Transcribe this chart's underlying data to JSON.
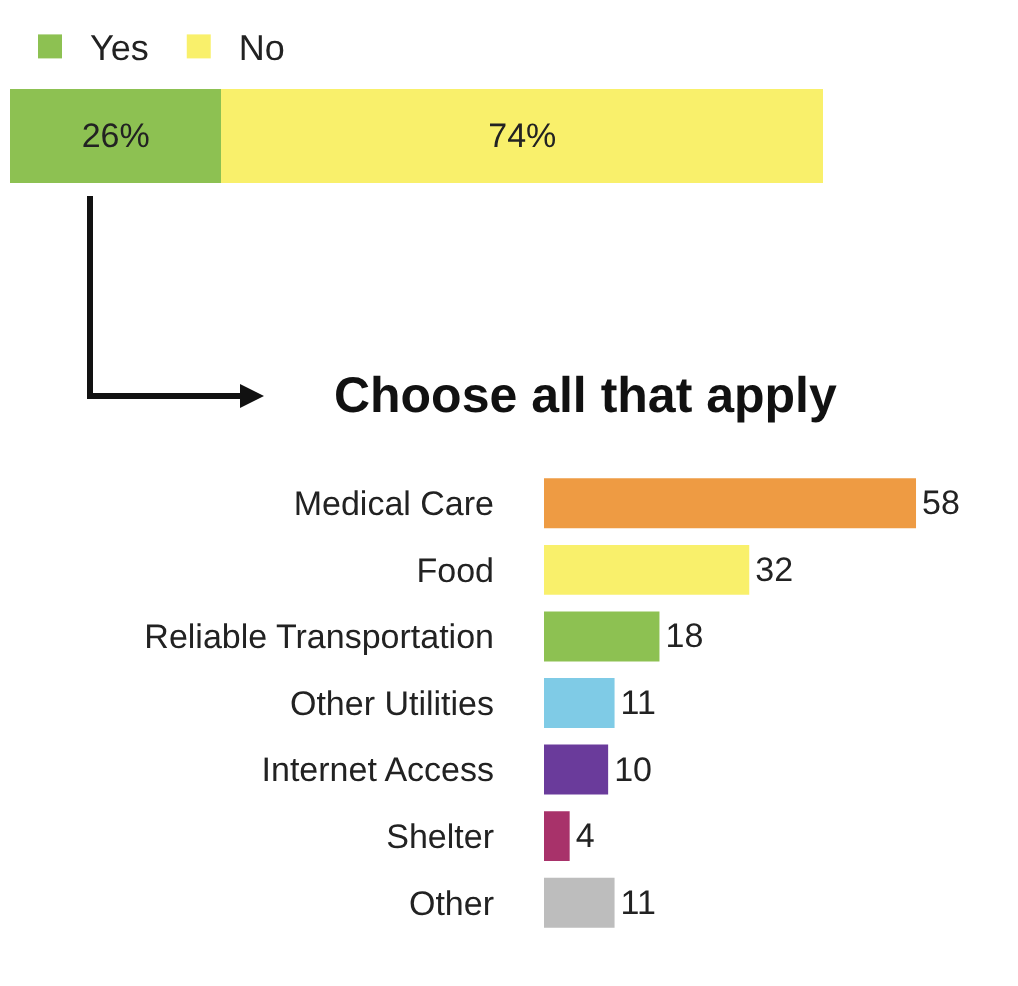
{
  "chart_data": [
    {
      "type": "bar",
      "orientation": "horizontal",
      "stacked": true,
      "categories": [
        null
      ],
      "tick_labels": false,
      "legend": "top left",
      "series": [
        {
          "name": "Yes",
          "color": "#8dc152",
          "values": [
            26
          ],
          "value_labels": [
            "26%"
          ]
        },
        {
          "name": "No",
          "color": "#f9f06b",
          "values": [
            74
          ],
          "value_labels": [
            "74%"
          ]
        }
      ]
    },
    {
      "type": "bar",
      "orientation": "horizontal",
      "title": "Choose all that apply",
      "categories": [
        "Medical Care",
        "Food",
        "Reliable Transportation",
        "Other Utilities",
        "Internet Access",
        "Shelter",
        "Other"
      ],
      "values": [
        58,
        32,
        18,
        11,
        10,
        4,
        11
      ],
      "colors": [
        "#ee9b43",
        "#f9f06b",
        "#8dc152",
        "#7fcbe6",
        "#6a3b9b",
        "#a8326a",
        "#bdbdbd"
      ],
      "tick_labels": "y",
      "data_labels": true
    }
  ]
}
